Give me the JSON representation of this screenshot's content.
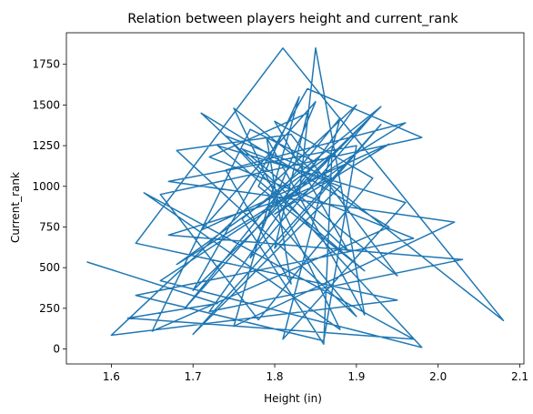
{
  "chart_data": {
    "type": "line",
    "title": "Relation between players height and current_rank",
    "xlabel": "Height (in)",
    "ylabel": "Current_rank",
    "xlim": [
      1.545,
      2.105
    ],
    "ylim": [
      -92,
      1944
    ],
    "x_ticks": [
      1.6,
      1.7,
      1.8,
      1.9,
      2.0,
      2.1
    ],
    "x_tick_labels": [
      "1.6",
      "1.7",
      "1.8",
      "1.9",
      "2.0",
      "2.1"
    ],
    "y_ticks": [
      0,
      250,
      500,
      750,
      1000,
      1250,
      1500,
      1750
    ],
    "y_tick_labels": [
      "0",
      "250",
      "500",
      "750",
      "1000",
      "1250",
      "1500",
      "1750"
    ],
    "grid": false,
    "series_color": "#1f77b4",
    "series": [
      {
        "values_note_free": true,
        "x": [
          1.57,
          1.73,
          1.62,
          1.97,
          1.64,
          1.88,
          1.75,
          2.08,
          1.81,
          1.63,
          1.95,
          1.6,
          1.9,
          1.72,
          2.03,
          1.67,
          1.83,
          1.85,
          1.91,
          1.79,
          1.82,
          1.74,
          1.96,
          1.68,
          1.87,
          1.86,
          1.76,
          1.93,
          1.7,
          1.84,
          1.98,
          1.66,
          1.78,
          1.92,
          1.8,
          1.89,
          1.71,
          1.94,
          1.65,
          1.77,
          1.85,
          1.69,
          1.88,
          1.81,
          1.96,
          1.73,
          1.91,
          1.78,
          1.83,
          1.75,
          2.02,
          1.67,
          1.9,
          1.86,
          1.63,
          1.97,
          1.72,
          1.84,
          1.8,
          1.93,
          1.7,
          1.88,
          1.76,
          1.95,
          1.82,
          1.68,
          1.9,
          1.79,
          1.87,
          1.74,
          1.98,
          1.66,
          1.83,
          1.92,
          1.77,
          1.85,
          1.71,
          1.94,
          1.8,
          1.89
        ],
        "y": [
          535,
          280,
          190,
          60,
          960,
          120,
          1480,
          175,
          1850,
          650,
          300,
          85,
          1500,
          230,
          550,
          700,
          950,
          1850,
          210,
          1300,
          400,
          1100,
          1390,
          520,
          1200,
          30,
          800,
          1490,
          360,
          1600,
          1300,
          950,
          180,
          1050,
          1400,
          600,
          1450,
          750,
          110,
          1350,
          1150,
          250,
          1420,
          60,
          900,
          1250,
          480,
          1000,
          1550,
          140,
          780,
          1030,
          1250,
          50,
          330,
          680,
          1180,
          1450,
          620,
          1380,
          90,
          1000,
          1230,
          450,
          1320,
          1220,
          200,
          870,
          1050,
          1310,
          10,
          420,
          980,
          1440,
          560,
          1520,
          730,
          1260,
          830,
          1150
        ]
      }
    ]
  }
}
